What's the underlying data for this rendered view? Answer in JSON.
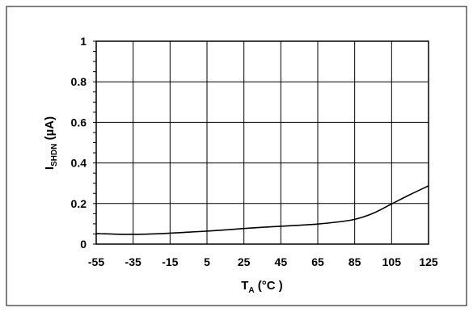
{
  "chart_data": {
    "type": "line",
    "title": "",
    "xlabel": {
      "main": "T",
      "sub": "A",
      "rest": " (°C  )"
    },
    "ylabel": {
      "main": "I",
      "sub": "SHDN",
      "rest": " (µA)"
    },
    "xlim": [
      -55,
      125
    ],
    "ylim": [
      0,
      1
    ],
    "x_ticks": [
      -55,
      -35,
      -15,
      5,
      25,
      45,
      65,
      85,
      105,
      125
    ],
    "x_tick_labels": [
      "-55",
      "-35",
      "-15",
      "5",
      "25",
      "45",
      "65",
      "85",
      "105",
      "125"
    ],
    "y_ticks": [
      0,
      0.2,
      0.4,
      0.6,
      0.8,
      1
    ],
    "y_tick_labels": [
      "0",
      "0.2",
      "0.4",
      "0.6",
      "0.8",
      "1"
    ],
    "grid": true,
    "legend": "none",
    "series": [
      {
        "color": "#000000",
        "x": [
          -55,
          -45,
          -35,
          -25,
          -15,
          -5,
          5,
          15,
          25,
          35,
          45,
          55,
          65,
          75,
          85,
          95,
          105,
          115,
          125
        ],
        "y": [
          0.052,
          0.049,
          0.048,
          0.05,
          0.054,
          0.059,
          0.064,
          0.07,
          0.077,
          0.083,
          0.088,
          0.093,
          0.099,
          0.108,
          0.122,
          0.152,
          0.198,
          0.244,
          0.287
        ]
      }
    ]
  }
}
